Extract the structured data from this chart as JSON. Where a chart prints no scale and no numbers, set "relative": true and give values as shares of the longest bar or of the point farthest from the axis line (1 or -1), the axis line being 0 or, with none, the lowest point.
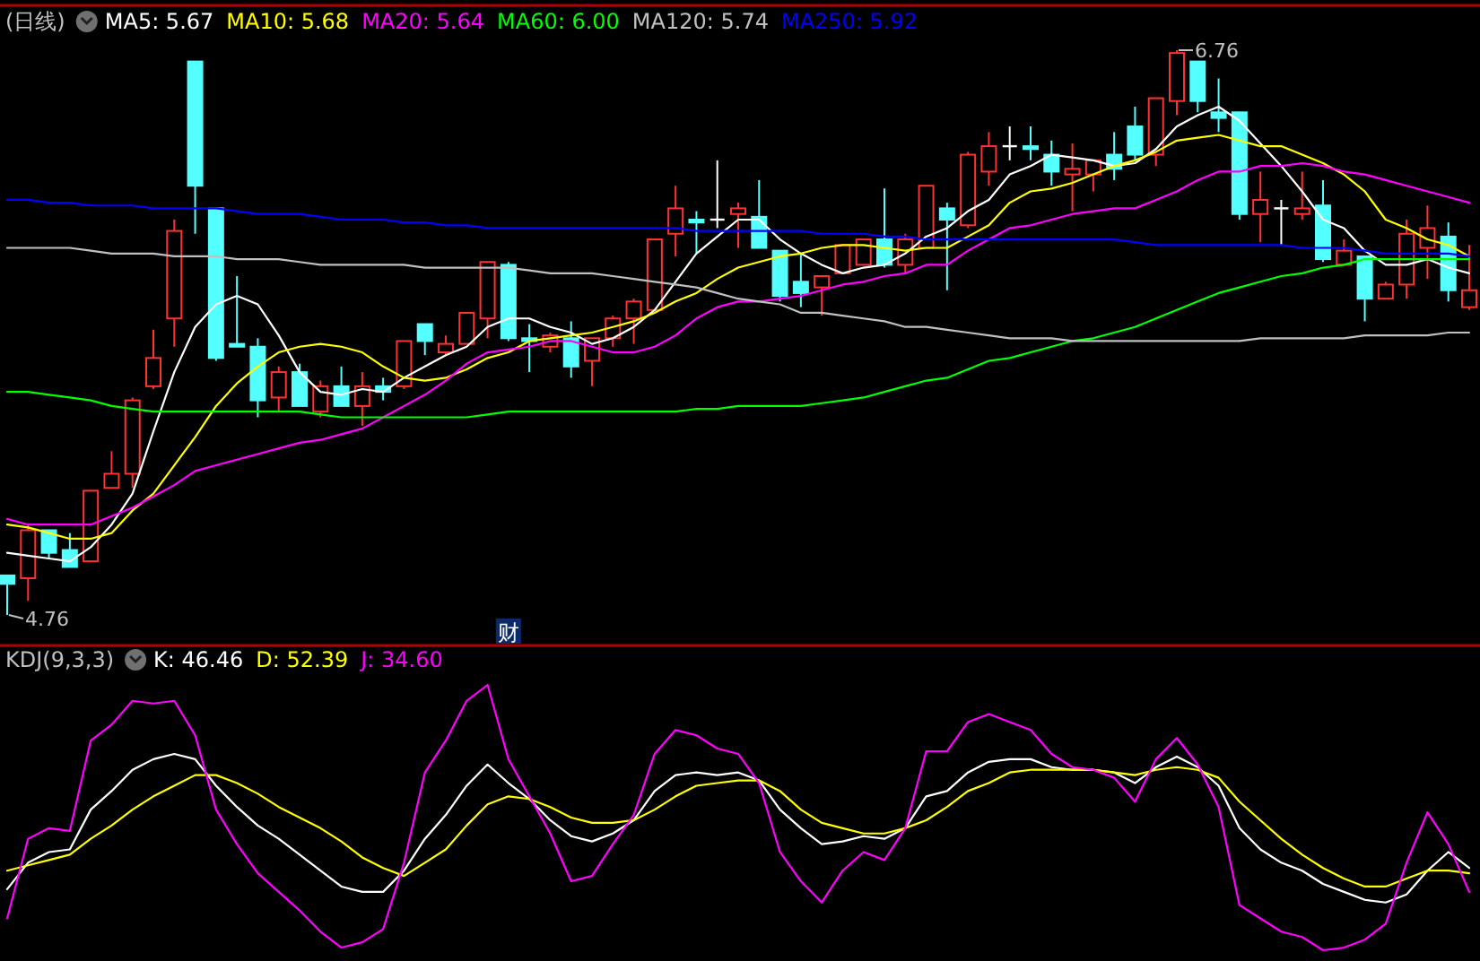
{
  "chart_data": [
    {
      "type": "candlestick",
      "title": "(日线)",
      "legend": "top left",
      "tick_labels": false,
      "categories": [
        null,
        null,
        null,
        null,
        null,
        null,
        null,
        null,
        null,
        null,
        null,
        null,
        null,
        null,
        null,
        null,
        null,
        null,
        null,
        null,
        null,
        null,
        null,
        null,
        null,
        null,
        null,
        null,
        null,
        null,
        null,
        null,
        null,
        null,
        null,
        null,
        null,
        null,
        null,
        null,
        null,
        null,
        null,
        null,
        null,
        null,
        null,
        null,
        null,
        null,
        null,
        null,
        null,
        null,
        null,
        null,
        null,
        null,
        null,
        null,
        null,
        null,
        null,
        null,
        null,
        null,
        null,
        null,
        null,
        null,
        null
      ],
      "ohlc": [
        [
          4.9,
          4.9,
          4.76,
          4.87
        ],
        [
          4.89,
          5.08,
          4.81,
          5.06
        ],
        [
          5.06,
          5.06,
          4.96,
          4.98
        ],
        [
          4.99,
          5.05,
          4.93,
          4.93
        ],
        [
          4.95,
          5.2,
          4.95,
          5.2
        ],
        [
          5.21,
          5.34,
          5.21,
          5.26
        ],
        [
          5.26,
          5.53,
          5.21,
          5.52
        ],
        [
          5.57,
          5.77,
          5.56,
          5.67
        ],
        [
          5.81,
          6.16,
          5.71,
          6.12
        ],
        [
          6.72,
          6.72,
          6.11,
          6.28
        ],
        [
          6.2,
          6.2,
          5.66,
          5.67
        ],
        [
          5.72,
          5.96,
          5.71,
          5.71
        ],
        [
          5.71,
          5.74,
          5.46,
          5.52
        ],
        [
          5.53,
          5.64,
          5.48,
          5.62
        ],
        [
          5.62,
          5.65,
          5.5,
          5.5
        ],
        [
          5.48,
          5.59,
          5.46,
          5.57
        ],
        [
          5.57,
          5.64,
          5.5,
          5.5
        ],
        [
          5.5,
          5.62,
          5.43,
          5.57
        ],
        [
          5.57,
          5.6,
          5.52,
          5.55
        ],
        [
          5.57,
          5.73,
          5.56,
          5.73
        ],
        [
          5.79,
          5.79,
          5.68,
          5.73
        ],
        [
          5.69,
          5.75,
          5.68,
          5.72
        ],
        [
          5.72,
          5.83,
          5.72,
          5.83
        ],
        [
          5.81,
          6.01,
          5.74,
          6.01
        ],
        [
          6.0,
          6.01,
          5.73,
          5.74
        ],
        [
          5.74,
          5.79,
          5.62,
          5.73
        ],
        [
          5.71,
          5.76,
          5.69,
          5.75
        ],
        [
          5.74,
          5.8,
          5.6,
          5.64
        ],
        [
          5.66,
          5.74,
          5.57,
          5.74
        ],
        [
          5.74,
          5.82,
          5.71,
          5.81
        ],
        [
          5.81,
          5.88,
          5.72,
          5.87
        ],
        [
          5.84,
          6.09,
          5.84,
          6.09
        ],
        [
          6.11,
          6.28,
          6.03,
          6.2
        ],
        [
          6.16,
          6.19,
          6.04,
          6.15
        ],
        [
          6.16,
          6.37,
          6.13,
          6.16
        ],
        [
          6.18,
          6.22,
          6.06,
          6.2
        ],
        [
          6.17,
          6.3,
          6.06,
          6.06
        ],
        [
          6.05,
          6.05,
          5.87,
          5.89
        ],
        [
          5.94,
          6.04,
          5.85,
          5.9
        ],
        [
          5.92,
          5.96,
          5.82,
          5.96
        ],
        [
          5.97,
          6.07,
          5.97,
          6.07
        ],
        [
          6.0,
          6.09,
          6.0,
          6.09
        ],
        [
          6.09,
          6.27,
          5.99,
          6.0
        ],
        [
          6.0,
          6.11,
          5.97,
          6.09
        ],
        [
          6.06,
          6.28,
          6.06,
          6.28
        ],
        [
          6.2,
          6.22,
          5.91,
          6.16
        ],
        [
          6.14,
          6.4,
          6.13,
          6.39
        ],
        [
          6.33,
          6.47,
          6.28,
          6.42
        ],
        [
          6.42,
          6.49,
          6.37,
          6.42
        ],
        [
          6.42,
          6.49,
          6.37,
          6.41
        ],
        [
          6.39,
          6.44,
          6.28,
          6.33
        ],
        [
          6.32,
          6.43,
          6.19,
          6.34
        ],
        [
          6.32,
          6.37,
          6.26,
          6.37
        ],
        [
          6.39,
          6.47,
          6.3,
          6.34
        ],
        [
          6.49,
          6.56,
          6.37,
          6.39
        ],
        [
          6.39,
          6.59,
          6.35,
          6.59
        ],
        [
          6.58,
          6.76,
          6.53,
          6.75
        ],
        [
          6.72,
          6.72,
          6.54,
          6.58
        ],
        [
          6.54,
          6.66,
          6.47,
          6.52
        ],
        [
          6.54,
          6.54,
          6.16,
          6.18
        ],
        [
          6.18,
          6.33,
          6.08,
          6.23
        ],
        [
          6.2,
          6.23,
          6.07,
          6.2
        ],
        [
          6.18,
          6.33,
          6.16,
          6.2
        ],
        [
          6.21,
          6.3,
          6.01,
          6.02
        ],
        [
          6.0,
          6.09,
          6.0,
          6.05
        ],
        [
          6.03,
          6.03,
          5.8,
          5.88
        ],
        [
          5.88,
          5.94,
          5.88,
          5.93
        ],
        [
          5.93,
          6.16,
          5.88,
          6.11
        ],
        [
          6.06,
          6.21,
          5.95,
          6.13
        ],
        [
          6.1,
          6.15,
          5.87,
          5.91
        ],
        [
          5.85,
          6.07,
          5.84,
          5.91
        ]
      ],
      "colors": [
        "#54ffff",
        "#ff3232",
        "#54ffff",
        "#54ffff",
        "#ff3232",
        "#ff3232",
        "#ff3232",
        "#ff3232",
        "#ff3232",
        "#54ffff",
        "#54ffff",
        "#54ffff",
        "#54ffff",
        "#ff3232",
        "#54ffff",
        "#ff3232",
        "#54ffff",
        "#ff3232",
        "#54ffff",
        "#ff3232",
        "#54ffff",
        "#ff3232",
        "#ff3232",
        "#ff3232",
        "#54ffff",
        "#54ffff",
        "#ff3232",
        "#54ffff",
        "#ff3232",
        "#ff3232",
        "#ff3232",
        "#ff3232",
        "#ff3232",
        "#54ffff",
        "#ffffff",
        "#ff3232",
        "#54ffff",
        "#54ffff",
        "#54ffff",
        "#ff3232",
        "#ff3232",
        "#ff3232",
        "#54ffff",
        "#ff3232",
        "#ff3232",
        "#54ffff",
        "#ff3232",
        "#ff3232",
        "#ffffff",
        "#54ffff",
        "#54ffff",
        "#ff3232",
        "#ff3232",
        "#54ffff",
        "#54ffff",
        "#ff3232",
        "#ff3232",
        "#54ffff",
        "#54ffff",
        "#54ffff",
        "#ff3232",
        "#ffffff",
        "#ff3232",
        "#54ffff",
        "#ff3232",
        "#54ffff",
        "#ff3232",
        "#ff3232",
        "#ff3232",
        "#54ffff",
        "#ff3232"
      ],
      "series": [
        {
          "type": "line",
          "name": "MA5: 5.67",
          "color": "#ffffff",
          "values": [
            4.98,
            4.97,
            4.96,
            4.95,
            5.0,
            5.08,
            5.19,
            5.41,
            5.62,
            5.78,
            5.86,
            5.89,
            5.86,
            5.75,
            5.62,
            5.55,
            5.54,
            5.56,
            5.55,
            5.6,
            5.64,
            5.68,
            5.71,
            5.78,
            5.81,
            5.81,
            5.78,
            5.76,
            5.72,
            5.74,
            5.78,
            5.84,
            5.94,
            6.04,
            6.1,
            6.16,
            6.16,
            6.09,
            6.04,
            6.0,
            5.97,
            5.99,
            6.0,
            6.04,
            6.1,
            6.13,
            6.19,
            6.23,
            6.32,
            6.35,
            6.39,
            6.38,
            6.37,
            6.35,
            6.36,
            6.41,
            6.49,
            6.53,
            6.56,
            6.51,
            6.43,
            6.35,
            6.26,
            6.16,
            6.13,
            6.05,
            6.0,
            6.0,
            6.02,
            5.99,
            5.97
          ]
        },
        {
          "type": "line",
          "name": "MA10: 5.68",
          "color": "#ffff00",
          "values": [
            5.08,
            5.07,
            5.05,
            5.03,
            5.03,
            5.05,
            5.13,
            5.19,
            5.29,
            5.39,
            5.5,
            5.58,
            5.64,
            5.69,
            5.71,
            5.72,
            5.71,
            5.69,
            5.64,
            5.6,
            5.59,
            5.6,
            5.63,
            5.67,
            5.69,
            5.73,
            5.74,
            5.75,
            5.76,
            5.78,
            5.8,
            5.83,
            5.87,
            5.9,
            5.95,
            5.99,
            6.01,
            6.03,
            6.04,
            6.06,
            6.07,
            6.07,
            6.06,
            6.05,
            6.06,
            6.06,
            6.1,
            6.14,
            6.22,
            6.26,
            6.27,
            6.29,
            6.32,
            6.35,
            6.37,
            6.4,
            6.44,
            6.45,
            6.46,
            6.44,
            6.42,
            6.42,
            6.39,
            6.36,
            6.32,
            6.26,
            6.16,
            6.13,
            6.09,
            6.07,
            6.03
          ]
        },
        {
          "type": "line",
          "name": "MA20: 5.64",
          "color": "#ff00ff",
          "values": [
            5.1,
            5.08,
            5.08,
            5.08,
            5.08,
            5.11,
            5.14,
            5.18,
            5.22,
            5.27,
            5.29,
            5.31,
            5.33,
            5.35,
            5.37,
            5.38,
            5.4,
            5.42,
            5.46,
            5.5,
            5.54,
            5.59,
            5.65,
            5.69,
            5.7,
            5.71,
            5.73,
            5.73,
            5.71,
            5.69,
            5.69,
            5.71,
            5.75,
            5.81,
            5.85,
            5.87,
            5.87,
            5.88,
            5.89,
            5.91,
            5.93,
            5.94,
            5.96,
            5.97,
            6.0,
            6.0,
            6.05,
            6.09,
            6.13,
            6.14,
            6.16,
            6.18,
            6.19,
            6.2,
            6.2,
            6.23,
            6.26,
            6.3,
            6.33,
            6.33,
            6.35,
            6.35,
            6.36,
            6.35,
            6.33,
            6.32,
            6.3,
            6.28,
            6.26,
            6.24,
            6.22
          ]
        },
        {
          "type": "line",
          "name": "MA60: 6.00",
          "color": "#00ff00",
          "values": [
            5.55,
            5.55,
            5.54,
            5.53,
            5.52,
            5.5,
            5.49,
            5.48,
            5.48,
            5.48,
            5.48,
            5.48,
            5.48,
            5.48,
            5.48,
            5.47,
            5.46,
            5.46,
            5.46,
            5.46,
            5.46,
            5.46,
            5.46,
            5.47,
            5.48,
            5.48,
            5.48,
            5.48,
            5.48,
            5.48,
            5.48,
            5.48,
            5.48,
            5.49,
            5.49,
            5.5,
            5.5,
            5.5,
            5.5,
            5.51,
            5.52,
            5.53,
            5.55,
            5.57,
            5.59,
            5.6,
            5.63,
            5.66,
            5.67,
            5.69,
            5.71,
            5.73,
            5.74,
            5.76,
            5.78,
            5.81,
            5.84,
            5.87,
            5.9,
            5.92,
            5.94,
            5.96,
            5.97,
            5.99,
            6.0,
            6.02,
            6.02,
            6.02,
            6.02,
            6.02,
            6.02
          ]
        },
        {
          "type": "line",
          "name": "MA120: 5.74",
          "color": "#c0c0c0",
          "values": [
            6.06,
            6.06,
            6.06,
            6.06,
            6.05,
            6.04,
            6.04,
            6.04,
            6.03,
            6.03,
            6.03,
            6.02,
            6.02,
            6.02,
            6.01,
            6.0,
            6.0,
            6.0,
            6.0,
            6.0,
            5.99,
            5.99,
            5.99,
            5.99,
            5.99,
            5.98,
            5.97,
            5.97,
            5.97,
            5.96,
            5.95,
            5.94,
            5.93,
            5.92,
            5.9,
            5.88,
            5.87,
            5.86,
            5.83,
            5.83,
            5.82,
            5.81,
            5.8,
            5.78,
            5.78,
            5.77,
            5.76,
            5.75,
            5.74,
            5.74,
            5.74,
            5.73,
            5.73,
            5.73,
            5.73,
            5.73,
            5.73,
            5.73,
            5.73,
            5.73,
            5.74,
            5.74,
            5.74,
            5.74,
            5.74,
            5.75,
            5.75,
            5.75,
            5.75,
            5.76,
            5.76
          ]
        },
        {
          "type": "line",
          "name": "MA250: 5.92",
          "color": "#0000ff",
          "values": [
            6.23,
            6.23,
            6.22,
            6.22,
            6.21,
            6.21,
            6.21,
            6.2,
            6.2,
            6.2,
            6.2,
            6.19,
            6.18,
            6.18,
            6.18,
            6.17,
            6.16,
            6.16,
            6.16,
            6.15,
            6.15,
            6.14,
            6.14,
            6.13,
            6.13,
            6.13,
            6.13,
            6.13,
            6.13,
            6.13,
            6.13,
            6.13,
            6.13,
            6.12,
            6.12,
            6.12,
            6.12,
            6.12,
            6.12,
            6.11,
            6.11,
            6.11,
            6.1,
            6.1,
            6.09,
            6.09,
            6.09,
            6.09,
            6.09,
            6.09,
            6.09,
            6.09,
            6.09,
            6.09,
            6.08,
            6.07,
            6.07,
            6.07,
            6.07,
            6.07,
            6.07,
            6.07,
            6.06,
            6.06,
            6.06,
            6.05,
            6.04,
            6.04,
            6.04,
            6.04,
            6.03
          ]
        }
      ],
      "annotations": [
        "6.76",
        "4.76",
        "财"
      ]
    },
    {
      "type": "line",
      "title": "KDJ(9,3,3)",
      "legend": "top left",
      "relative": true,
      "tick_labels": false,
      "categories": [
        null,
        null,
        null,
        null,
        null,
        null,
        null,
        null,
        null,
        null,
        null,
        null,
        null,
        null,
        null,
        null,
        null,
        null,
        null,
        null,
        null,
        null,
        null,
        null,
        null,
        null,
        null,
        null,
        null,
        null,
        null,
        null,
        null,
        null,
        null,
        null,
        null,
        null,
        null,
        null,
        null,
        null,
        null,
        null,
        null,
        null,
        null,
        null,
        null,
        null,
        null,
        null,
        null,
        null,
        null,
        null,
        null,
        null,
        null,
        null,
        null,
        null,
        null,
        null,
        null,
        null,
        null,
        null,
        null,
        null,
        null
      ],
      "series": [
        {
          "name": "K: 46.46",
          "color": "#ffffff",
          "values": [
            0.23,
            0.33,
            0.37,
            0.38,
            0.53,
            0.6,
            0.68,
            0.72,
            0.74,
            0.72,
            0.62,
            0.54,
            0.47,
            0.42,
            0.36,
            0.3,
            0.24,
            0.22,
            0.22,
            0.3,
            0.42,
            0.51,
            0.62,
            0.7,
            0.63,
            0.57,
            0.49,
            0.43,
            0.41,
            0.44,
            0.49,
            0.6,
            0.66,
            0.67,
            0.66,
            0.67,
            0.64,
            0.53,
            0.46,
            0.4,
            0.41,
            0.43,
            0.42,
            0.46,
            0.58,
            0.6,
            0.67,
            0.71,
            0.72,
            0.72,
            0.69,
            0.68,
            0.68,
            0.67,
            0.63,
            0.69,
            0.73,
            0.69,
            0.62,
            0.46,
            0.38,
            0.33,
            0.3,
            0.25,
            0.22,
            0.19,
            0.18,
            0.21,
            0.3,
            0.37,
            0.31
          ]
        },
        {
          "name": "D: 52.39",
          "color": "#ffff00",
          "values": [
            0.3,
            0.32,
            0.34,
            0.36,
            0.42,
            0.47,
            0.53,
            0.58,
            0.62,
            0.66,
            0.66,
            0.63,
            0.59,
            0.54,
            0.5,
            0.46,
            0.41,
            0.35,
            0.31,
            0.28,
            0.33,
            0.38,
            0.47,
            0.55,
            0.58,
            0.57,
            0.54,
            0.5,
            0.48,
            0.48,
            0.49,
            0.53,
            0.58,
            0.62,
            0.63,
            0.64,
            0.64,
            0.6,
            0.53,
            0.48,
            0.46,
            0.44,
            0.44,
            0.46,
            0.49,
            0.54,
            0.6,
            0.63,
            0.67,
            0.68,
            0.68,
            0.68,
            0.68,
            0.67,
            0.66,
            0.68,
            0.69,
            0.68,
            0.65,
            0.56,
            0.49,
            0.42,
            0.36,
            0.31,
            0.27,
            0.24,
            0.24,
            0.27,
            0.3,
            0.3,
            0.29
          ]
        },
        {
          "name": "J: 34.60",
          "color": "#ff00ff",
          "values": [
            0.12,
            0.42,
            0.46,
            0.45,
            0.79,
            0.85,
            0.94,
            0.93,
            0.94,
            0.81,
            0.53,
            0.4,
            0.29,
            0.22,
            0.15,
            0.07,
            0.01,
            0.03,
            0.08,
            0.33,
            0.67,
            0.79,
            0.94,
            1.0,
            0.72,
            0.58,
            0.44,
            0.26,
            0.28,
            0.4,
            0.51,
            0.74,
            0.83,
            0.81,
            0.76,
            0.74,
            0.63,
            0.37,
            0.26,
            0.18,
            0.3,
            0.37,
            0.34,
            0.46,
            0.75,
            0.75,
            0.86,
            0.89,
            0.86,
            0.83,
            0.74,
            0.69,
            0.68,
            0.65,
            0.56,
            0.72,
            0.8,
            0.7,
            0.54,
            0.17,
            0.12,
            0.07,
            0.05,
            0,
            0.01,
            0.04,
            0.1,
            0.33,
            0.52,
            0.4,
            0.22
          ]
        }
      ]
    }
  ]
}
